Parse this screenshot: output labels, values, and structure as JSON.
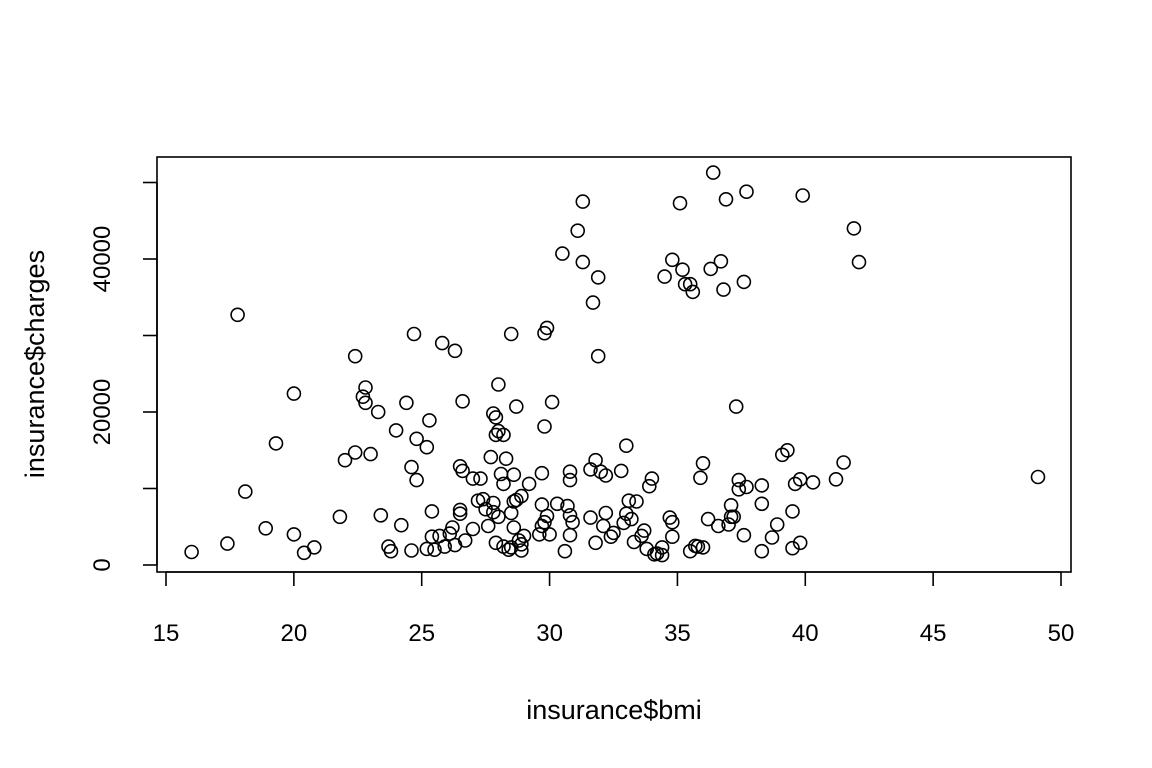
{
  "chart_data": {
    "type": "scatter",
    "title": "",
    "xlabel": "insurance$bmi",
    "ylabel": "insurance$charges",
    "xlim": [
      14.7,
      50.4
    ],
    "ylim": [
      -300,
      53000
    ],
    "x_ticks": [
      15,
      20,
      25,
      30,
      35,
      40,
      45,
      50
    ],
    "y_ticks": [
      0,
      20000,
      40000
    ],
    "y_tick_labels": [
      "0",
      "20000",
      "40000"
    ],
    "y_minor_ticks": [
      10000,
      30000,
      50000
    ],
    "grid": false,
    "marker": "open-circle",
    "points": [
      [
        16.0,
        1700
      ],
      [
        17.4,
        2800
      ],
      [
        17.8,
        32700
      ],
      [
        18.1,
        9600
      ],
      [
        18.9,
        4800
      ],
      [
        19.3,
        15900
      ],
      [
        20.0,
        22400
      ],
      [
        20.0,
        4000
      ],
      [
        20.4,
        1600
      ],
      [
        20.8,
        2300
      ],
      [
        21.8,
        6300
      ],
      [
        22.0,
        13700
      ],
      [
        22.4,
        14700
      ],
      [
        22.4,
        27300
      ],
      [
        22.7,
        22000
      ],
      [
        22.8,
        23200
      ],
      [
        22.8,
        21200
      ],
      [
        23.0,
        14500
      ],
      [
        23.3,
        20000
      ],
      [
        23.4,
        6500
      ],
      [
        23.7,
        2400
      ],
      [
        23.8,
        1800
      ],
      [
        24.0,
        17600
      ],
      [
        24.2,
        5200
      ],
      [
        24.4,
        21200
      ],
      [
        24.6,
        12800
      ],
      [
        24.6,
        1900
      ],
      [
        24.7,
        30200
      ],
      [
        24.8,
        11100
      ],
      [
        24.8,
        16500
      ],
      [
        25.2,
        15400
      ],
      [
        25.3,
        18900
      ],
      [
        25.2,
        2100
      ],
      [
        25.4,
        3700
      ],
      [
        25.4,
        7000
      ],
      [
        25.5,
        2000
      ],
      [
        25.7,
        3800
      ],
      [
        25.8,
        29000
      ],
      [
        25.9,
        2400
      ],
      [
        26.2,
        4900
      ],
      [
        26.1,
        4100
      ],
      [
        26.3,
        28000
      ],
      [
        26.3,
        2600
      ],
      [
        26.5,
        6700
      ],
      [
        26.5,
        12900
      ],
      [
        26.5,
        7200
      ],
      [
        26.6,
        21400
      ],
      [
        26.6,
        12300
      ],
      [
        26.7,
        3200
      ],
      [
        27.0,
        4700
      ],
      [
        27.0,
        11300
      ],
      [
        27.2,
        8400
      ],
      [
        27.3,
        11300
      ],
      [
        27.4,
        8600
      ],
      [
        27.5,
        7300
      ],
      [
        27.6,
        5100
      ],
      [
        27.7,
        14100
      ],
      [
        27.8,
        6900
      ],
      [
        27.8,
        8100
      ],
      [
        27.8,
        19800
      ],
      [
        27.9,
        17000
      ],
      [
        27.9,
        19300
      ],
      [
        27.9,
        2900
      ],
      [
        28.0,
        23600
      ],
      [
        28.0,
        17500
      ],
      [
        28.0,
        6300
      ],
      [
        28.1,
        11900
      ],
      [
        28.2,
        2400
      ],
      [
        28.2,
        10600
      ],
      [
        28.2,
        17000
      ],
      [
        28.3,
        13900
      ],
      [
        28.4,
        2000
      ],
      [
        28.5,
        2300
      ],
      [
        28.5,
        6800
      ],
      [
        28.5,
        30200
      ],
      [
        28.6,
        4900
      ],
      [
        28.6,
        8300
      ],
      [
        28.6,
        11800
      ],
      [
        28.7,
        8500
      ],
      [
        28.7,
        20700
      ],
      [
        28.8,
        3200
      ],
      [
        28.9,
        9000
      ],
      [
        28.9,
        2700
      ],
      [
        28.9,
        1900
      ],
      [
        29.0,
        3800
      ],
      [
        29.2,
        10600
      ],
      [
        29.6,
        4000
      ],
      [
        29.7,
        5100
      ],
      [
        29.7,
        12000
      ],
      [
        29.8,
        5600
      ],
      [
        29.7,
        7900
      ],
      [
        29.8,
        18100
      ],
      [
        29.8,
        30300
      ],
      [
        29.9,
        6400
      ],
      [
        29.9,
        31000
      ],
      [
        30.0,
        4000
      ],
      [
        30.1,
        21300
      ],
      [
        30.3,
        8000
      ],
      [
        30.5,
        40700
      ],
      [
        30.6,
        1800
      ],
      [
        30.7,
        7700
      ],
      [
        30.8,
        3900
      ],
      [
        30.8,
        6500
      ],
      [
        30.8,
        11100
      ],
      [
        30.8,
        12200
      ],
      [
        30.9,
        5600
      ],
      [
        31.1,
        43700
      ],
      [
        31.3,
        47500
      ],
      [
        31.3,
        39600
      ],
      [
        31.6,
        6200
      ],
      [
        31.6,
        12500
      ],
      [
        31.7,
        34300
      ],
      [
        31.8,
        2900
      ],
      [
        31.8,
        13700
      ],
      [
        31.9,
        37600
      ],
      [
        31.9,
        27300
      ],
      [
        32.0,
        12200
      ],
      [
        32.1,
        5100
      ],
      [
        32.2,
        11700
      ],
      [
        32.2,
        6800
      ],
      [
        32.4,
        3700
      ],
      [
        32.5,
        4200
      ],
      [
        32.8,
        12300
      ],
      [
        32.9,
        5500
      ],
      [
        33.0,
        15600
      ],
      [
        33.0,
        6700
      ],
      [
        33.1,
        8400
      ],
      [
        33.2,
        6000
      ],
      [
        33.3,
        3000
      ],
      [
        33.4,
        8300
      ],
      [
        33.6,
        3800
      ],
      [
        33.7,
        4500
      ],
      [
        33.8,
        2100
      ],
      [
        33.9,
        10300
      ],
      [
        34.0,
        11300
      ],
      [
        34.1,
        1400
      ],
      [
        34.2,
        1500
      ],
      [
        34.4,
        2300
      ],
      [
        34.4,
        1300
      ],
      [
        34.5,
        37700
      ],
      [
        34.7,
        6200
      ],
      [
        34.8,
        3700
      ],
      [
        34.8,
        5600
      ],
      [
        34.8,
        39900
      ],
      [
        35.1,
        47300
      ],
      [
        35.2,
        38600
      ],
      [
        35.3,
        36700
      ],
      [
        35.5,
        1800
      ],
      [
        35.5,
        36700
      ],
      [
        35.6,
        35700
      ],
      [
        35.7,
        2500
      ],
      [
        35.8,
        2400
      ],
      [
        35.9,
        11400
      ],
      [
        36.0,
        13300
      ],
      [
        36.0,
        2300
      ],
      [
        36.2,
        6000
      ],
      [
        36.3,
        38700
      ],
      [
        36.4,
        51300
      ],
      [
        36.6,
        5100
      ],
      [
        36.7,
        39700
      ],
      [
        36.8,
        36000
      ],
      [
        36.9,
        47800
      ],
      [
        37.0,
        5300
      ],
      [
        37.1,
        6300
      ],
      [
        37.1,
        7800
      ],
      [
        37.2,
        6300
      ],
      [
        37.3,
        20700
      ],
      [
        37.4,
        9900
      ],
      [
        37.4,
        11100
      ],
      [
        37.6,
        37000
      ],
      [
        37.6,
        3900
      ],
      [
        37.7,
        48800
      ],
      [
        37.7,
        10200
      ],
      [
        38.3,
        8000
      ],
      [
        38.3,
        1800
      ],
      [
        38.3,
        10400
      ],
      [
        38.7,
        3600
      ],
      [
        38.9,
        5300
      ],
      [
        39.1,
        14400
      ],
      [
        39.3,
        15000
      ],
      [
        39.5,
        2200
      ],
      [
        39.5,
        7000
      ],
      [
        39.6,
        10600
      ],
      [
        39.8,
        2900
      ],
      [
        39.8,
        11200
      ],
      [
        39.9,
        48300
      ],
      [
        40.3,
        10800
      ],
      [
        41.2,
        11200
      ],
      [
        41.5,
        13400
      ],
      [
        41.9,
        44000
      ],
      [
        42.1,
        39600
      ],
      [
        49.1,
        11500
      ]
    ]
  }
}
